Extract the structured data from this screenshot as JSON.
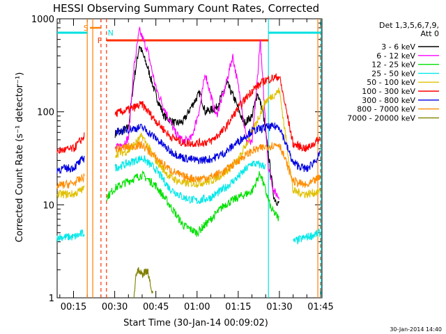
{
  "chart_data": {
    "type": "line",
    "title": "HESSI Observing Summary Count Rates, Corrected",
    "xlabel": "Start Time (30-Jan-14 00:09:02)",
    "ylabel": "Corrected Count Rate (s⁻¹ detector⁻¹)",
    "timestamp": "30-Jan-2014 14:40",
    "y_scale": "log",
    "ylim": [
      1,
      1000
    ],
    "xlim": [
      "00:09:02",
      "01:45:30"
    ],
    "y_ticks": [
      "1",
      "10",
      "100",
      "1000"
    ],
    "x_ticks": [
      "00:15",
      "00:30",
      "00:45",
      "01:00",
      "01:15",
      "01:30",
      "01:45"
    ],
    "legend_header": [
      "Det 1,3,5,6,7,9,",
      "Att 0"
    ],
    "flags": [
      {
        "label": "S",
        "color": "#ff8000"
      },
      {
        "label": "F",
        "color": "#ff3000"
      },
      {
        "label": "N",
        "color": "#00e0e0"
      }
    ],
    "series": [
      {
        "name": "3 - 6 keV",
        "color": "#000000",
        "x": [
          "00:09",
          "00:15",
          "00:20",
          "00:27",
          "00:30",
          "00:33",
          "00:35",
          "00:37",
          "00:39",
          "00:42",
          "00:45",
          "00:48",
          "00:52",
          "00:55",
          "00:58",
          "01:01",
          "01:03",
          "01:07",
          "01:11",
          "01:14",
          "01:17",
          "01:20",
          "01:22",
          "01:24",
          "01:26",
          "01:28",
          "01:30"
        ],
        "y": [
          null,
          null,
          null,
          null,
          58,
          62,
          68,
          220,
          520,
          300,
          150,
          90,
          75,
          78,
          115,
          160,
          100,
          110,
          200,
          130,
          75,
          90,
          160,
          100,
          35,
          12,
          10
        ]
      },
      {
        "name": "6 - 12 keV",
        "color": "#ff00ff",
        "x": [
          "00:27",
          "00:30",
          "00:33",
          "00:35",
          "00:37",
          "00:39",
          "00:42",
          "00:45",
          "00:48",
          "00:52",
          "00:55",
          "00:58",
          "01:01",
          "01:03",
          "01:05",
          "01:07",
          "01:10",
          "01:13",
          "01:16",
          "01:18",
          "01:20",
          "01:22",
          "01:23",
          "01:24",
          "01:26",
          "01:28",
          "01:30"
        ],
        "y": [
          null,
          40,
          45,
          52,
          300,
          750,
          450,
          180,
          110,
          60,
          48,
          52,
          110,
          260,
          150,
          90,
          170,
          400,
          130,
          50,
          45,
          230,
          600,
          200,
          25,
          14,
          12
        ]
      },
      {
        "name": "12 - 25 keV",
        "color": "#00e000",
        "x": [
          "00:09",
          "00:15",
          "00:19",
          "00:27",
          "00:30",
          "00:35",
          "00:40",
          "00:45",
          "00:50",
          "00:55",
          "01:00",
          "01:05",
          "01:10",
          "01:15",
          "01:20",
          "01:23",
          "01:27",
          "01:30"
        ],
        "y": [
          null,
          null,
          null,
          12,
          15,
          18,
          21,
          16,
          10,
          6,
          5,
          7,
          10,
          12,
          14,
          22,
          9,
          7
        ]
      },
      {
        "name": "25 - 50 keV",
        "color": "#00e8e8",
        "x": [
          "00:09",
          "00:15",
          "00:19",
          "00:27",
          "00:30",
          "00:35",
          "00:40",
          "00:45",
          "00:50",
          "00:55",
          "01:00",
          "01:05",
          "01:10",
          "01:15",
          "01:20",
          "01:25",
          "01:30",
          "01:35",
          "01:40",
          "01:45"
        ],
        "y": [
          4.5,
          4.5,
          5,
          null,
          25,
          28,
          32,
          24,
          15,
          12,
          11,
          12,
          15,
          20,
          28,
          26,
          null,
          4,
          4.5,
          5
        ]
      },
      {
        "name": "50 - 100 keV",
        "color": "#e0c000",
        "x": [
          "00:09",
          "00:15",
          "00:19",
          "00:27",
          "00:30",
          "00:35",
          "00:40",
          "00:45",
          "00:50",
          "00:55",
          "01:00",
          "01:05",
          "01:10",
          "01:15",
          "01:20",
          "01:25",
          "01:30",
          "01:35",
          "01:40",
          "01:45"
        ],
        "y": [
          13,
          13,
          15,
          null,
          35,
          38,
          55,
          30,
          20,
          17,
          17,
          18,
          22,
          30,
          60,
          130,
          170,
          14,
          13,
          14
        ]
      },
      {
        "name": "100 - 300 keV",
        "color": "#ff0000",
        "x": [
          "00:09",
          "00:15",
          "00:19",
          "00:27",
          "00:30",
          "00:35",
          "00:40",
          "00:45",
          "00:50",
          "00:55",
          "01:00",
          "01:05",
          "01:10",
          "01:15",
          "01:20",
          "01:25",
          "01:30",
          "01:35",
          "01:40",
          "01:45"
        ],
        "y": [
          38,
          40,
          55,
          null,
          95,
          105,
          120,
          80,
          55,
          46,
          46,
          48,
          65,
          110,
          170,
          220,
          240,
          45,
          40,
          52
        ]
      },
      {
        "name": "300 - 800 keV",
        "color": "#0000e0",
        "x": [
          "00:09",
          "00:15",
          "00:19",
          "00:27",
          "00:30",
          "00:35",
          "00:40",
          "00:45",
          "00:50",
          "00:55",
          "01:00",
          "01:05",
          "01:10",
          "01:15",
          "01:20",
          "01:25",
          "01:30",
          "01:35",
          "01:40",
          "01:45"
        ],
        "y": [
          24,
          25,
          32,
          null,
          60,
          65,
          68,
          52,
          38,
          32,
          30,
          31,
          36,
          48,
          62,
          68,
          70,
          28,
          24,
          35
        ]
      },
      {
        "name": "800 - 7000 keV",
        "color": "#ff8c00",
        "x": [
          "00:09",
          "00:15",
          "00:19",
          "00:27",
          "00:30",
          "00:35",
          "00:40",
          "00:45",
          "00:50",
          "00:55",
          "01:00",
          "01:05",
          "01:10",
          "01:15",
          "01:20",
          "01:25",
          "01:30",
          "01:35",
          "01:40",
          "01:45"
        ],
        "y": [
          16,
          17,
          20,
          null,
          40,
          42,
          44,
          32,
          24,
          20,
          19,
          20,
          23,
          30,
          38,
          42,
          45,
          18,
          16,
          20
        ]
      },
      {
        "name": "7000 - 20000 keV",
        "color": "#808000",
        "x": [
          "00:37",
          "00:38",
          "00:40",
          "00:42",
          "00:44"
        ],
        "y": [
          1,
          2,
          1.8,
          2,
          1
        ]
      }
    ]
  }
}
